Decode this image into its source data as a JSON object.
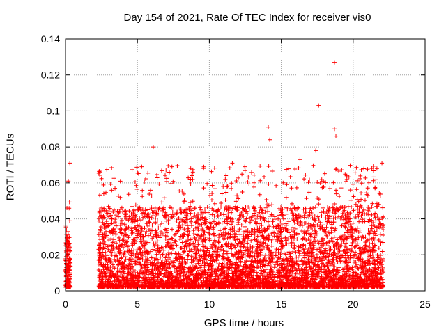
{
  "chart_data": {
    "type": "scatter",
    "title": "Day 154 of 2021, Rate Of TEC Index for receiver vis0",
    "xlabel": "GPS time / hours",
    "ylabel": "ROTI / TECUs",
    "xlim": [
      0,
      25
    ],
    "ylim": [
      0,
      0.14
    ],
    "x_ticks": [
      "0",
      "5",
      "10",
      "15",
      "20",
      "25"
    ],
    "y_ticks": [
      "0",
      "0.02",
      "0.04",
      "0.06",
      "0.08",
      "0.1",
      "0.12",
      "0.14"
    ],
    "grid": true,
    "marker": "+",
    "color": "#ff0000",
    "series": [
      {
        "name": "vis0",
        "segments": [
          {
            "x_start": 0.0,
            "x_end": 0.35,
            "y_typical_max": 0.03
          },
          {
            "x_start": 2.3,
            "x_end": 22.1,
            "y_typical_max": 0.045
          }
        ],
        "outliers": [
          {
            "x": 0.3,
            "y": 0.071
          },
          {
            "x": 0.2,
            "y": 0.061
          },
          {
            "x": 0.1,
            "y": 0.046
          },
          {
            "x": 6.1,
            "y": 0.08
          },
          {
            "x": 14.1,
            "y": 0.091
          },
          {
            "x": 14.2,
            "y": 0.084
          },
          {
            "x": 17.6,
            "y": 0.103
          },
          {
            "x": 18.7,
            "y": 0.127
          },
          {
            "x": 18.7,
            "y": 0.09
          },
          {
            "x": 18.8,
            "y": 0.086
          },
          {
            "x": 17.4,
            "y": 0.078
          },
          {
            "x": 22.0,
            "y": 0.071
          },
          {
            "x": 11.6,
            "y": 0.071
          },
          {
            "x": 21.3,
            "y": 0.068
          },
          {
            "x": 16.3,
            "y": 0.073
          },
          {
            "x": 5.3,
            "y": 0.069
          },
          {
            "x": 7.4,
            "y": 0.069
          },
          {
            "x": 9.6,
            "y": 0.068
          }
        ]
      }
    ]
  }
}
